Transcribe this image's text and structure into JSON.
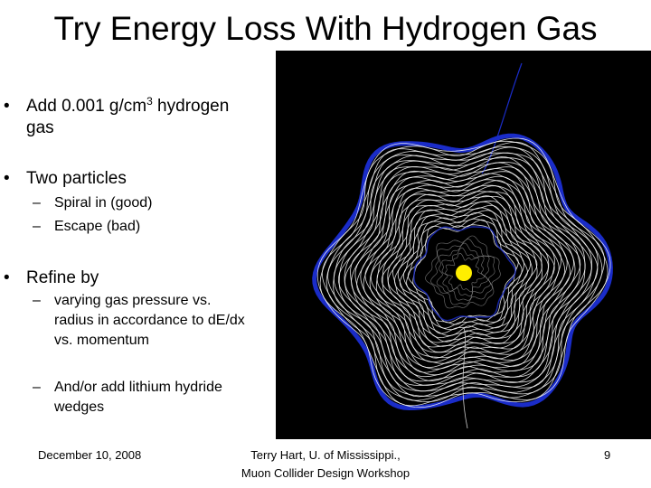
{
  "slide": {
    "title": "Try Energy Loss With Hydrogen Gas",
    "bullet_marker": "•",
    "dash_marker": "–",
    "bullets": [
      {
        "line1_prefix": "Add 0.001 g/cm",
        "superscript": "3",
        "line1_suffix": " hydrogen",
        "line2": "gas"
      },
      {
        "text": "Two particles",
        "subitems": [
          "Spiral in (good)",
          "Escape (bad)"
        ]
      },
      {
        "text": "Refine by",
        "subitems": [
          {
            "lines": [
              "varying gas pressure vs.",
              "radius in accordance to d",
              "E/dx",
              "vs. momentum"
            ]
          },
          {
            "lines": [
              "And/or add lithium hydride",
              "wedges"
            ]
          }
        ]
      }
    ],
    "sim_image": {
      "background_color": "#000000",
      "track_color": "#ffffff",
      "boundary_color": "#1a2cc8",
      "target_color": "#ffee00"
    },
    "footer": {
      "date": "December 10, 2008",
      "author_line1": "Terry Hart, U. of Mississippi.,",
      "author_line2": "Muon Collider Design Workshop",
      "page": "9"
    }
  }
}
